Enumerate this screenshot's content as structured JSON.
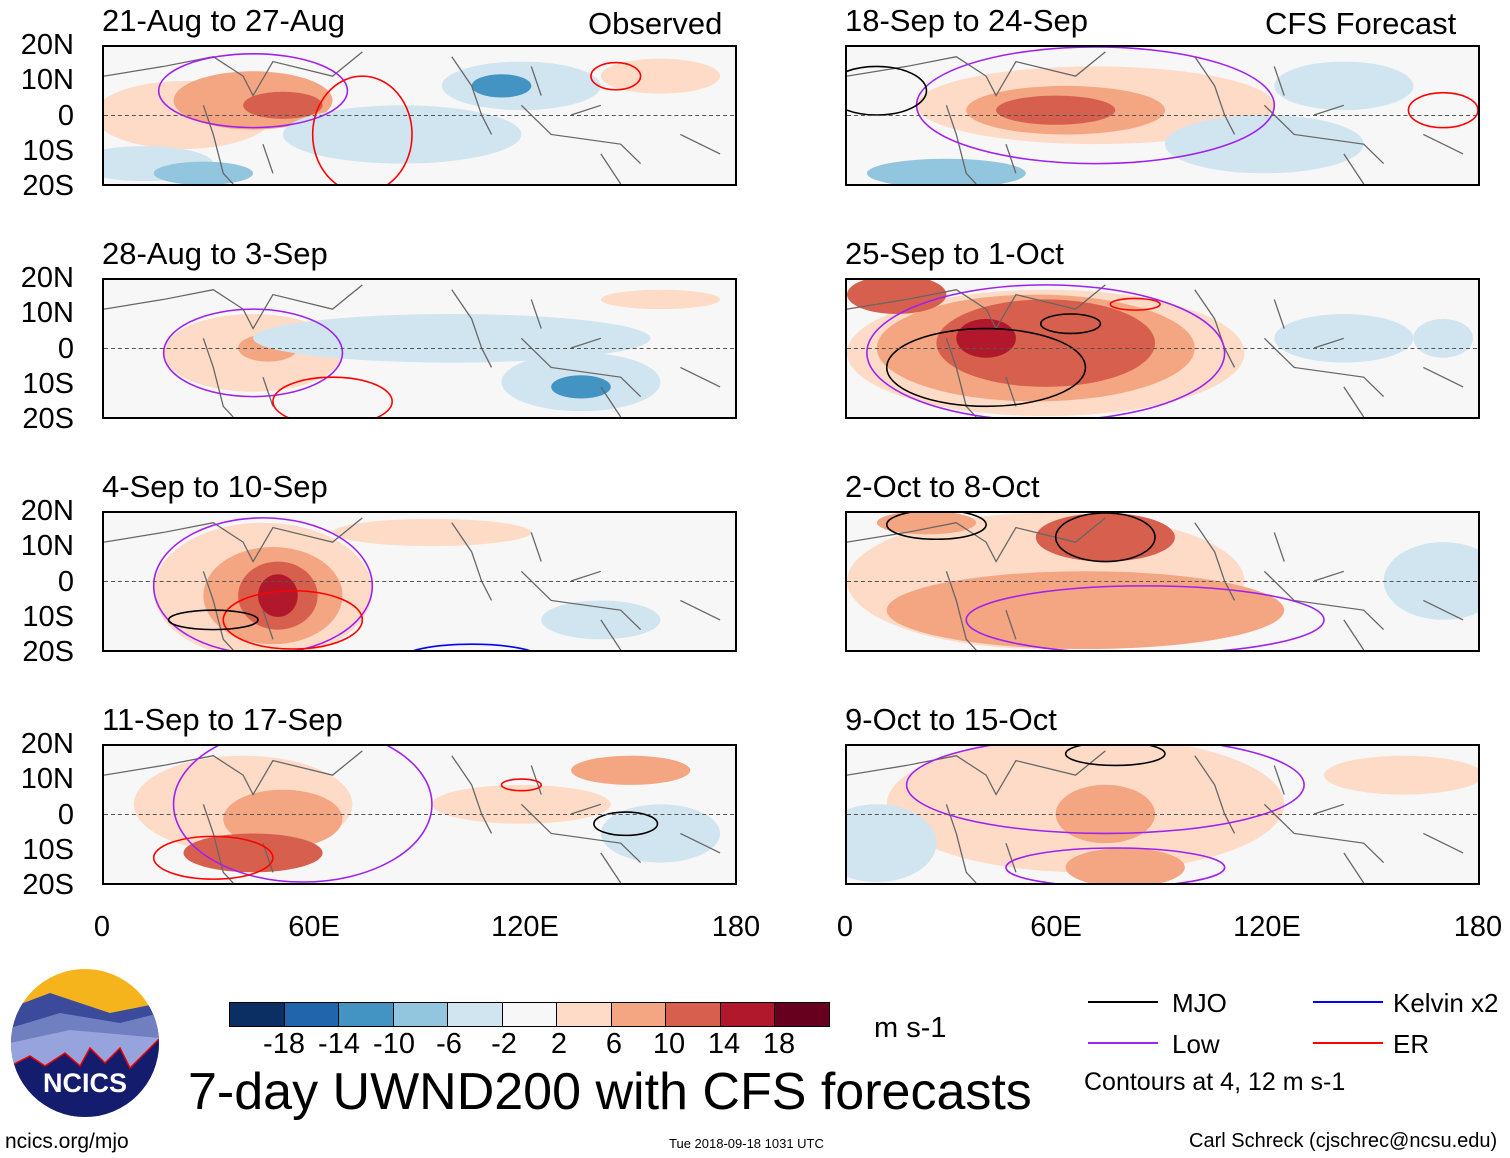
{
  "header": {
    "observed_label": "Observed",
    "forecast_label": "CFS Forecast"
  },
  "panels": {
    "observed": [
      "21-Aug to 27-Aug",
      "28-Aug to 3-Sep",
      "4-Sep to 10-Sep",
      "11-Sep to 17-Sep"
    ],
    "forecast": [
      "18-Sep to 24-Sep",
      "25-Sep to 1-Oct",
      "2-Oct to 8-Oct",
      "9-Oct to 15-Oct"
    ]
  },
  "y_ticks": [
    "20N",
    "10N",
    "0",
    "10S",
    "20S"
  ],
  "x_ticks": [
    "0",
    "60E",
    "120E",
    "180"
  ],
  "colorbar": {
    "labels": [
      "-18",
      "-14",
      "-10",
      "-6",
      "-2",
      "2",
      "6",
      "10",
      "14",
      "18"
    ],
    "colors": [
      "#0b2f63",
      "#2166ac",
      "#4393c3",
      "#92c5de",
      "#d1e5f0",
      "#f7f7f7",
      "#fddbc7",
      "#f4a582",
      "#d6604d",
      "#b2182b",
      "#67001f"
    ],
    "units": "m s-1"
  },
  "legend": {
    "items": [
      {
        "label": "MJO",
        "color": "#000000"
      },
      {
        "label": "Kelvin x2",
        "color": "#0000ff"
      },
      {
        "label": "Low",
        "color": "#a020f0"
      },
      {
        "label": "ER",
        "color": "#ff0000"
      }
    ],
    "note": "Contours at 4, 12 m s-1"
  },
  "logo": {
    "text": "NCICS"
  },
  "footer": {
    "url": "ncics.org/mjo",
    "title": "7-day UWND200 with CFS forecasts",
    "timestamp": "Tue 2018-09-18 1031 UTC",
    "credit": "Carl Schreck (cjschrec@ncsu.edu)"
  }
}
